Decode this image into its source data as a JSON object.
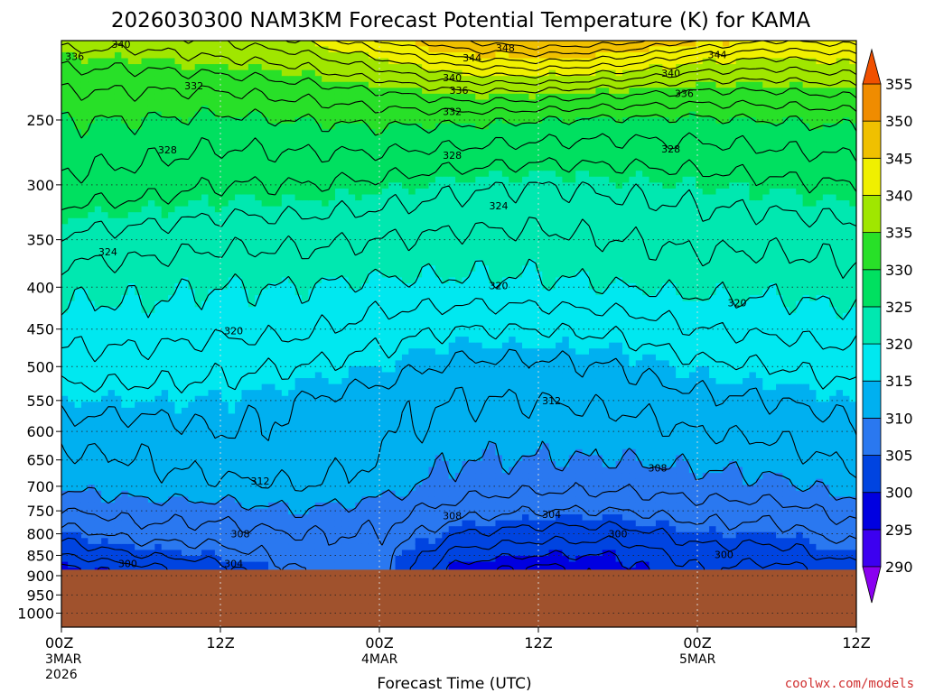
{
  "chart_data": {
    "type": "contour",
    "title": "2026030300 NAM3KM Forecast Potential Temperature (K) for KAMA",
    "xlabel": "Forecast Time (UTC)",
    "ylabel": "",
    "credit": "coolwx.com/models",
    "y_scale": "log-pressure",
    "y_inverted": true,
    "ylim_hpa": [
      1040,
      200
    ],
    "y_ticks": [
      250,
      300,
      350,
      400,
      450,
      500,
      550,
      600,
      650,
      700,
      750,
      800,
      850,
      900,
      950,
      1000
    ],
    "x_hours_range": [
      0,
      60
    ],
    "x_ticks": [
      {
        "hour": 0,
        "label": "00Z",
        "sub1": "3MAR",
        "sub2": "2026"
      },
      {
        "hour": 12,
        "label": "12Z",
        "sub1": "",
        "sub2": ""
      },
      {
        "hour": 24,
        "label": "00Z",
        "sub1": "4MAR",
        "sub2": ""
      },
      {
        "hour": 36,
        "label": "12Z",
        "sub1": "",
        "sub2": ""
      },
      {
        "hour": 48,
        "label": "00Z",
        "sub1": "5MAR",
        "sub2": ""
      },
      {
        "hour": 60,
        "label": "12Z",
        "sub1": "",
        "sub2": ""
      }
    ],
    "grid": "dotted",
    "terrain_pressure_hpa": 885,
    "colorbar": {
      "levels": [
        290,
        295,
        300,
        305,
        310,
        315,
        320,
        325,
        330,
        335,
        340,
        345,
        350,
        355
      ],
      "colors": [
        "#8a00f0",
        "#3c00f0",
        "#0000e0",
        "#0044e0",
        "#2a78f0",
        "#00b0f0",
        "#00e8f0",
        "#00e8b0",
        "#00e060",
        "#28e028",
        "#a0e600",
        "#f0f000",
        "#f0c000",
        "#f08c00",
        "#f05000"
      ]
    },
    "contour_levels_k": [
      298,
      300,
      302,
      304,
      306,
      308,
      310,
      312,
      314,
      316,
      318,
      320,
      322,
      324,
      326,
      328,
      330,
      332,
      334,
      336,
      338,
      340,
      342,
      344,
      346,
      348
    ],
    "profile_hours": [
      0,
      6,
      12,
      18,
      24,
      30,
      36,
      42,
      48,
      54,
      60
    ],
    "profiles_k_by_pressure": {
      "885": [
        299,
        301,
        303,
        306,
        307,
        299,
        297,
        299,
        302,
        301,
        303
      ],
      "850": [
        302,
        304,
        305,
        307,
        307,
        301,
        300,
        300,
        303,
        303,
        305
      ],
      "800": [
        305,
        307,
        307,
        308,
        308,
        304,
        303,
        303,
        305,
        305,
        307
      ],
      "750": [
        308,
        309,
        309,
        310,
        309,
        307,
        306,
        306,
        307,
        307,
        309
      ],
      "700": [
        310.5,
        311,
        311.5,
        312,
        311,
        309,
        308.5,
        308.5,
        309,
        309.5,
        311
      ],
      "650": [
        311.5,
        312,
        313,
        313,
        312,
        310,
        310,
        310,
        310.5,
        311,
        312.5
      ],
      "600": [
        313,
        313,
        314,
        313.5,
        312.5,
        311,
        311,
        311,
        312,
        312.5,
        313.5
      ],
      "550": [
        315,
        315,
        315,
        314,
        313,
        312,
        312,
        312.5,
        313.5,
        314,
        315
      ],
      "500": [
        317,
        317,
        316.5,
        316,
        315,
        313.5,
        313.5,
        314,
        315.5,
        316,
        317
      ],
      "450": [
        319,
        319,
        318.5,
        318.5,
        317,
        316,
        316,
        316.5,
        318,
        318.5,
        319
      ],
      "400": [
        320.5,
        320.5,
        320,
        320,
        319.5,
        319.5,
        319.5,
        320,
        320.5,
        320.5,
        321
      ],
      "350": [
        323.5,
        323,
        322.5,
        322.5,
        322,
        321.5,
        321.5,
        322,
        322.5,
        322.5,
        323
      ],
      "300": [
        327.5,
        327,
        326,
        326,
        325.5,
        324.5,
        324,
        324.5,
        325,
        325.5,
        326
      ],
      "250": [
        330,
        330,
        329.5,
        330,
        330.5,
        330.5,
        330,
        329.5,
        329.5,
        330,
        330.5
      ],
      "230": [
        332,
        332,
        332,
        333,
        334,
        336,
        336,
        335,
        334,
        334,
        335
      ],
      "210": [
        335,
        335,
        336,
        337,
        340,
        344,
        345,
        344,
        341,
        340,
        341
      ],
      "200": [
        337,
        337,
        338,
        340,
        344,
        348,
        350,
        349,
        346,
        344,
        345
      ]
    },
    "contour_labels": [
      {
        "text": "340",
        "hour": 4.5,
        "hpa": 202
      },
      {
        "text": "336",
        "hour": 1.0,
        "hpa": 209
      },
      {
        "text": "332",
        "hour": 10.0,
        "hpa": 227
      },
      {
        "text": "328",
        "hour": 8.0,
        "hpa": 272
      },
      {
        "text": "324",
        "hour": 3.5,
        "hpa": 362
      },
      {
        "text": "320",
        "hour": 13.0,
        "hpa": 452
      },
      {
        "text": "312",
        "hour": 15.0,
        "hpa": 690
      },
      {
        "text": "308",
        "hour": 13.5,
        "hpa": 800
      },
      {
        "text": "304",
        "hour": 13.0,
        "hpa": 870
      },
      {
        "text": "300",
        "hour": 5.0,
        "hpa": 870
      },
      {
        "text": "348",
        "hour": 33.5,
        "hpa": 204
      },
      {
        "text": "344",
        "hour": 31.0,
        "hpa": 210
      },
      {
        "text": "340",
        "hour": 29.5,
        "hpa": 222
      },
      {
        "text": "336",
        "hour": 30.0,
        "hpa": 230
      },
      {
        "text": "332",
        "hour": 29.5,
        "hpa": 244
      },
      {
        "text": "328",
        "hour": 29.5,
        "hpa": 276
      },
      {
        "text": "324",
        "hour": 33.0,
        "hpa": 318
      },
      {
        "text": "320",
        "hour": 33.0,
        "hpa": 398
      },
      {
        "text": "312",
        "hour": 37.0,
        "hpa": 550
      },
      {
        "text": "308",
        "hour": 29.5,
        "hpa": 760
      },
      {
        "text": "304",
        "hour": 37.0,
        "hpa": 757
      },
      {
        "text": "300",
        "hour": 42.0,
        "hpa": 800
      },
      {
        "text": "308",
        "hour": 45.0,
        "hpa": 665
      },
      {
        "text": "328",
        "hour": 46.0,
        "hpa": 271
      },
      {
        "text": "336",
        "hour": 47.0,
        "hpa": 232
      },
      {
        "text": "340",
        "hour": 46.0,
        "hpa": 219
      },
      {
        "text": "344",
        "hour": 49.5,
        "hpa": 208
      },
      {
        "text": "320",
        "hour": 51.0,
        "hpa": 418
      },
      {
        "text": "300",
        "hour": 50.0,
        "hpa": 848
      }
    ]
  }
}
